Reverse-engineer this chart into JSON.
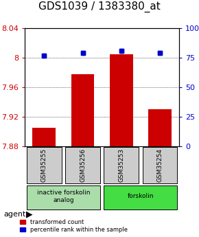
{
  "title": "GDS1039 / 1383380_at",
  "samples": [
    "GSM35255",
    "GSM35256",
    "GSM35253",
    "GSM35254"
  ],
  "bar_values": [
    7.905,
    7.978,
    8.005,
    7.93
  ],
  "percentile_values": [
    77,
    79,
    81,
    79
  ],
  "ylim_left": [
    7.88,
    8.04
  ],
  "ylim_right": [
    0,
    100
  ],
  "yticks_left": [
    7.88,
    7.92,
    7.96,
    8.0,
    8.04
  ],
  "yticks_right": [
    0,
    25,
    50,
    75,
    100
  ],
  "ytick_labels_left": [
    "7.88",
    "7.92",
    "7.96",
    "8",
    "8.04"
  ],
  "ytick_labels_right": [
    "0",
    "25",
    "50",
    "75",
    "100%"
  ],
  "bar_color": "#cc0000",
  "dot_color": "#0000cc",
  "bar_bottom": 7.88,
  "groups": [
    {
      "label": "inactive forskolin\nanalog",
      "indices": [
        0,
        1
      ],
      "color": "#aaddaa"
    },
    {
      "label": "forskolin",
      "indices": [
        2,
        3
      ],
      "color": "#44dd44"
    }
  ],
  "agent_label": "agent",
  "legend_bar_label": "transformed count",
  "legend_dot_label": "percentile rank within the sample",
  "grid_color": "#000000",
  "sample_box_color": "#cccccc",
  "title_fontsize": 11,
  "tick_fontsize": 8,
  "bar_width": 0.6
}
